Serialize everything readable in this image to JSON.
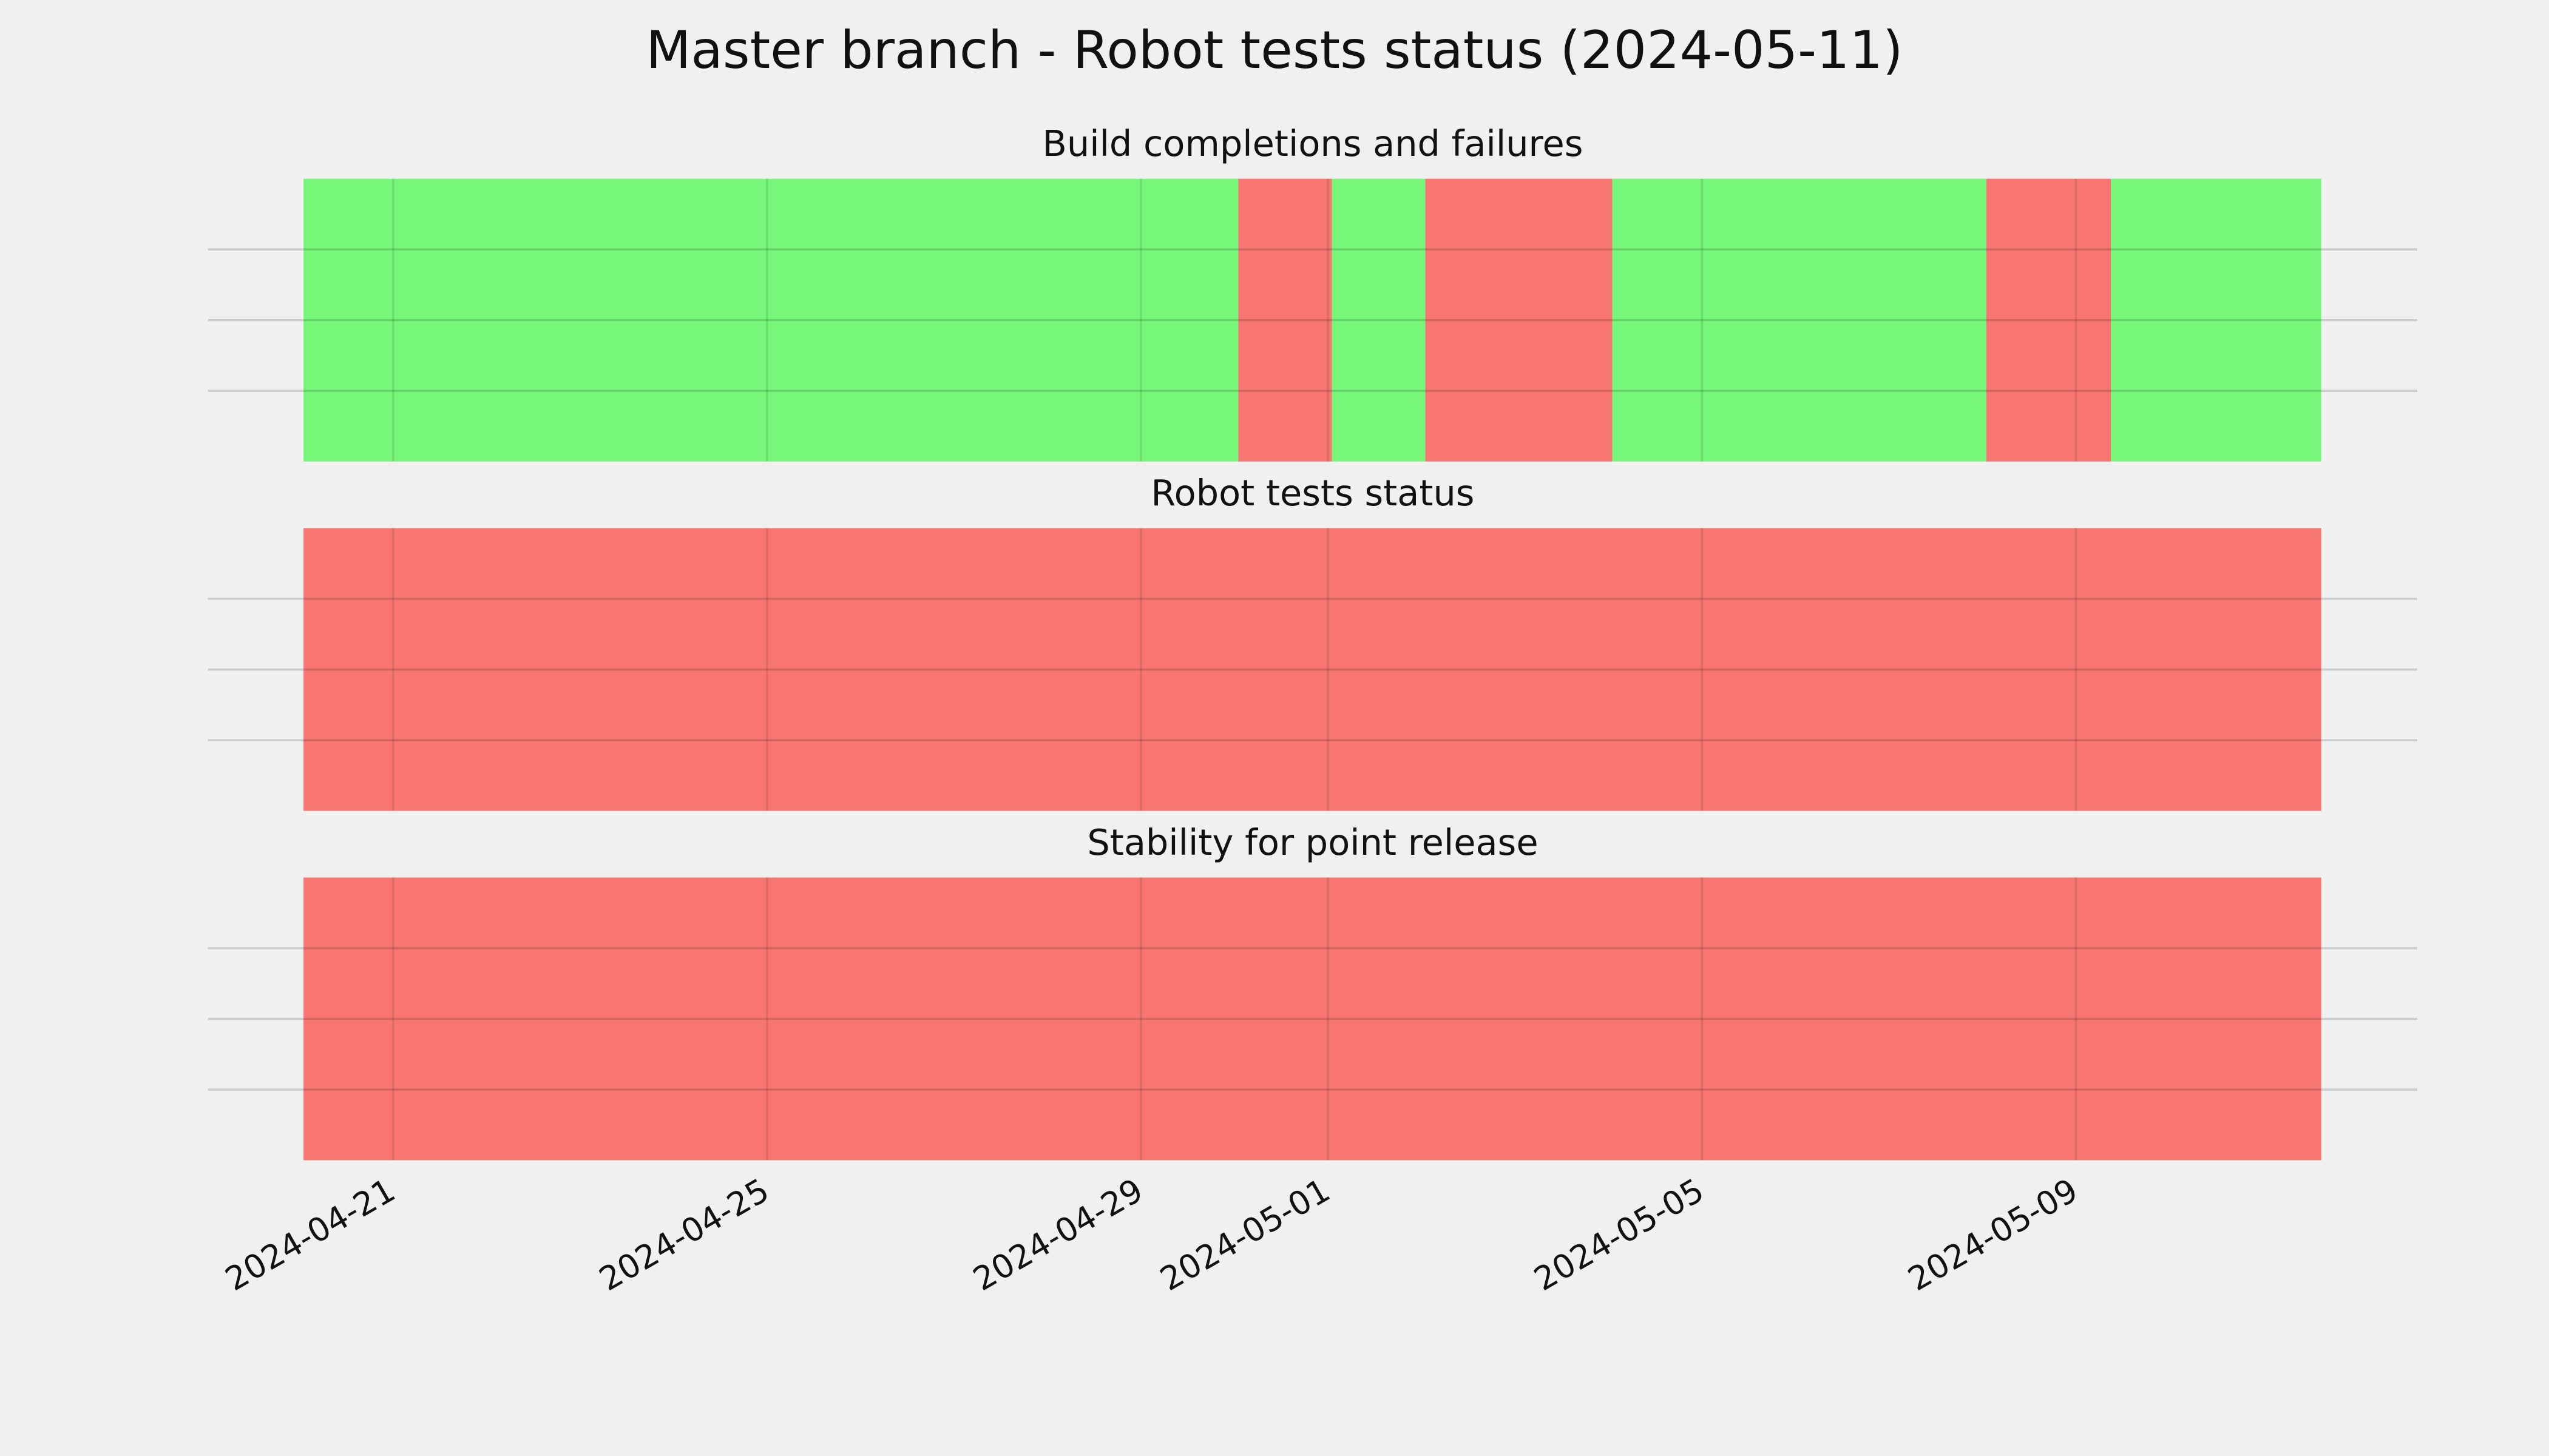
{
  "title": "Master branch - Robot tests status (2024-05-11)",
  "chart_data": [
    {
      "type": "timeline",
      "title": "Build completions and failures",
      "x": [
        "2024-04-20T01:00",
        "2024-04-30T01:00",
        "2024-05-01T01:00",
        "2024-05-02T01:00",
        "2024-05-04T01:00",
        "2024-05-08T01:00",
        "2024-05-09T09:00",
        "2024-05-11T15:00"
      ],
      "colors": [
        "#76f77a",
        "#f77672",
        "#76f77a",
        "#f77672",
        "#76f77a",
        "#f77672",
        "#76f77a"
      ],
      "xlim": [
        "2024-04-19T00:30",
        "2024-05-12T15:40"
      ],
      "ylim": [
        0,
        1
      ],
      "yticks": [
        0.25,
        0.5,
        0.75
      ],
      "grid": true
    },
    {
      "type": "timeline",
      "title": "Robot tests status",
      "x": [
        "2024-04-20T01:00",
        "2024-05-11T15:00"
      ],
      "colors": [
        "#f77672"
      ],
      "xlim": [
        "2024-04-19T00:30",
        "2024-05-12T15:40"
      ],
      "ylim": [
        0,
        1
      ],
      "yticks": [
        0.25,
        0.5,
        0.75
      ],
      "grid": true
    },
    {
      "type": "timeline",
      "title": "Stability for point release",
      "x": [
        "2024-04-20T01:00",
        "2024-05-11T15:00"
      ],
      "colors": [
        "#f77672"
      ],
      "xlim": [
        "2024-04-19T00:30",
        "2024-05-12T15:40"
      ],
      "ylim": [
        0,
        1
      ],
      "yticks": [
        0.25,
        0.5,
        0.75
      ],
      "grid": true,
      "xticks": [
        "2024-04-21",
        "2024-04-25",
        "2024-04-29",
        "2024-05-01",
        "2024-05-05",
        "2024-05-09"
      ]
    }
  ]
}
